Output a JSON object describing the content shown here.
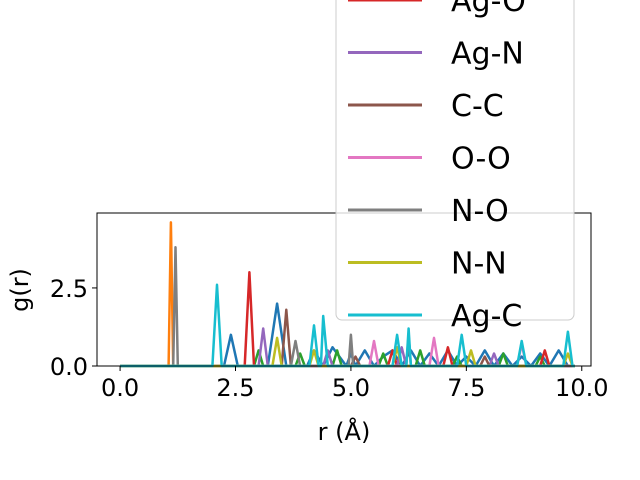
{
  "chart_data": {
    "type": "line",
    "xlabel": "r (Å)",
    "ylabel": "g(r)",
    "xlim": [
      -0.5,
      10.2
    ],
    "ylim": [
      0.0,
      4.9
    ],
    "xticks": [
      {
        "value": 0.0,
        "label": "0.0"
      },
      {
        "value": 2.5,
        "label": "2.5"
      },
      {
        "value": 5.0,
        "label": "5.0"
      },
      {
        "value": 7.5,
        "label": "7.5"
      },
      {
        "value": 10.0,
        "label": "10.0"
      }
    ],
    "yticks": [
      {
        "value": 0.0,
        "label": "0.0"
      },
      {
        "value": 2.5,
        "label": "2.5"
      }
    ],
    "grid": false,
    "legend_position": "upper-right",
    "series": [
      {
        "name": "",
        "color": "#1f77b4",
        "x": [
          0,
          2.25,
          2.4,
          2.55,
          2.6,
          3.2,
          3.4,
          3.6,
          4.05,
          4.2,
          4.4,
          4.6,
          4.9,
          5.0,
          5.1,
          5.3,
          5.5,
          5.7,
          5.9,
          6.1,
          6.3,
          6.5,
          6.7,
          6.9,
          7.1,
          7.3,
          7.5,
          7.7,
          7.9,
          8.1,
          8.3,
          8.5,
          8.7,
          8.9,
          9.1,
          9.3,
          9.5,
          9.7,
          9.85
        ],
        "y": [
          0,
          0,
          1.0,
          0,
          0,
          0,
          2.0,
          0,
          0,
          0.5,
          0,
          0.6,
          0,
          0.4,
          0,
          0.5,
          0,
          0.3,
          0.5,
          0,
          0.5,
          0,
          0.4,
          0,
          0.5,
          0,
          0.3,
          0,
          0.5,
          0,
          0.4,
          0,
          0.3,
          0,
          0.4,
          0,
          0.5,
          0,
          0
        ]
      },
      {
        "name": "",
        "color": "#ff7f0e",
        "x": [
          0,
          1.05,
          1.1,
          1.15,
          1.25,
          9.85
        ],
        "y": [
          0,
          0,
          4.6,
          0,
          0,
          0
        ]
      },
      {
        "name": "",
        "color": "#2ca02c",
        "x": [
          0,
          2.9,
          3.0,
          3.1,
          3.8,
          3.9,
          4.0,
          4.6,
          4.7,
          4.8,
          5.6,
          5.7,
          5.8,
          6.4,
          6.5,
          6.6,
          7.2,
          7.3,
          7.4,
          8.2,
          8.3,
          8.4,
          9.0,
          9.1,
          9.2,
          9.85
        ],
        "y": [
          0,
          0,
          0.5,
          0,
          0,
          0.4,
          0,
          0,
          0.5,
          0,
          0,
          0.4,
          0,
          0,
          0.5,
          0,
          0,
          0.3,
          0,
          0,
          0.4,
          0,
          0,
          0.3,
          0,
          0
        ]
      },
      {
        "name": "Ag-O",
        "color": "#d62728",
        "x": [
          0,
          2.7,
          2.8,
          2.9,
          5.8,
          5.9,
          6.0,
          7.0,
          7.1,
          7.2,
          9.1,
          9.2,
          9.3,
          9.85
        ],
        "y": [
          0,
          0,
          3.0,
          0,
          0,
          0.5,
          0,
          0,
          0.6,
          0,
          0,
          0.5,
          0,
          0
        ]
      },
      {
        "name": "Ag-N",
        "color": "#9467bd",
        "x": [
          0,
          3.0,
          3.1,
          3.2,
          4.4,
          4.5,
          4.6,
          6.0,
          6.1,
          6.2,
          8.0,
          8.1,
          8.2,
          9.85
        ],
        "y": [
          0,
          0,
          1.2,
          0,
          0,
          0.5,
          0,
          0,
          0.6,
          0,
          0,
          0.4,
          0,
          0
        ]
      },
      {
        "name": "C-C",
        "color": "#8c564b",
        "x": [
          0,
          3.5,
          3.6,
          3.7,
          5.0,
          5.1,
          5.2,
          7.8,
          7.9,
          8.0,
          9.85
        ],
        "y": [
          0,
          0,
          1.8,
          0,
          0,
          0.3,
          0,
          0,
          0.3,
          0,
          0
        ]
      },
      {
        "name": "O-O",
        "color": "#e377c2",
        "x": [
          0,
          5.4,
          5.5,
          5.6,
          6.7,
          6.8,
          6.9,
          8.6,
          8.7,
          8.8,
          9.85
        ],
        "y": [
          0,
          0,
          0.8,
          0,
          0,
          0.9,
          0,
          0,
          0.7,
          0,
          0
        ]
      },
      {
        "name": "N-O",
        "color": "#7f7f7f",
        "x": [
          0,
          1.15,
          1.2,
          1.25,
          1.35,
          3.7,
          3.8,
          3.9,
          4.95,
          5.0,
          5.05,
          6.2,
          6.25,
          6.3,
          9.85
        ],
        "y": [
          0,
          0,
          3.8,
          0,
          0,
          0,
          0.8,
          0,
          0,
          1.0,
          0,
          0,
          1.0,
          0,
          0
        ]
      },
      {
        "name": "N-N",
        "color": "#bcbd22",
        "x": [
          0,
          3.3,
          3.4,
          3.5,
          4.1,
          4.2,
          4.3,
          5.9,
          6.0,
          6.1,
          7.5,
          7.6,
          7.7,
          9.6,
          9.7,
          9.8,
          9.85
        ],
        "y": [
          0,
          0,
          0.9,
          0,
          0,
          0.5,
          0,
          0,
          0.6,
          0,
          0,
          0.5,
          0,
          0,
          0.4,
          0,
          0
        ]
      },
      {
        "name": "Ag-C",
        "color": "#17becf",
        "x": [
          0,
          2.0,
          2.1,
          2.2,
          4.1,
          4.2,
          4.3,
          4.35,
          4.4,
          4.5,
          5.9,
          6.0,
          6.1,
          6.2,
          6.25,
          6.3,
          7.3,
          7.4,
          7.5,
          8.6,
          8.7,
          8.8,
          9.6,
          9.7,
          9.8,
          9.85
        ],
        "y": [
          0,
          0,
          2.6,
          0,
          0,
          1.3,
          0,
          0,
          1.6,
          0,
          0,
          1.0,
          0,
          0,
          1.2,
          0,
          0,
          1.0,
          0,
          0,
          0.8,
          0,
          0,
          1.1,
          0,
          0
        ]
      }
    ]
  }
}
